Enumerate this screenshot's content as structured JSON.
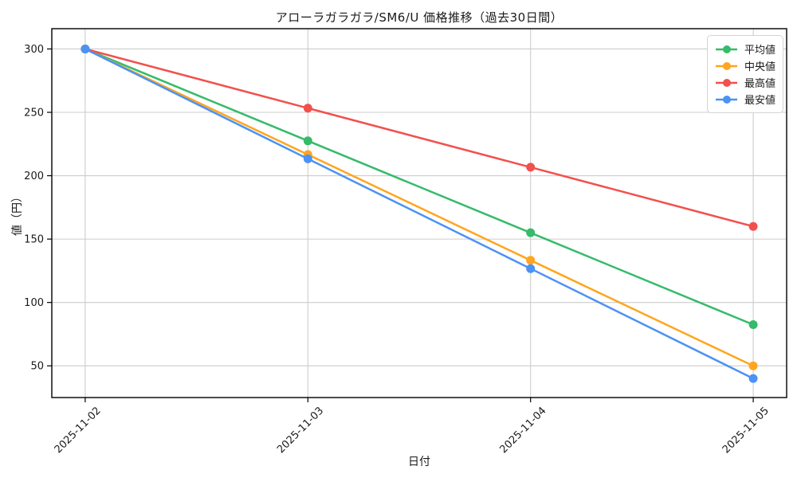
{
  "chart_data": {
    "type": "line",
    "title": "アローラガラガラ/SM6/U 価格推移（過去30日間）",
    "xlabel": "日付",
    "ylabel": "値（円）",
    "categories": [
      "2025-11-02",
      "2025-11-03",
      "2025-11-04",
      "2025-11-05"
    ],
    "series": [
      {
        "name": "平均値",
        "color": "#35bb69",
        "values": [
          300,
          227.5,
          155,
          82.5
        ]
      },
      {
        "name": "中央値",
        "color": "#ffa51e",
        "values": [
          300,
          216.7,
          133.3,
          50
        ]
      },
      {
        "name": "最高値",
        "color": "#f2504d",
        "values": [
          300,
          253.3,
          206.7,
          160
        ]
      },
      {
        "name": "最安値",
        "color": "#4b92f5",
        "values": [
          300,
          213.3,
          126.7,
          40
        ]
      }
    ],
    "yticks": [
      50,
      100,
      150,
      200,
      250,
      300
    ],
    "ylim": [
      25,
      316
    ],
    "grid": true,
    "grid_color": "#cccccc",
    "legend_position": "upper right",
    "marker": "circle"
  }
}
